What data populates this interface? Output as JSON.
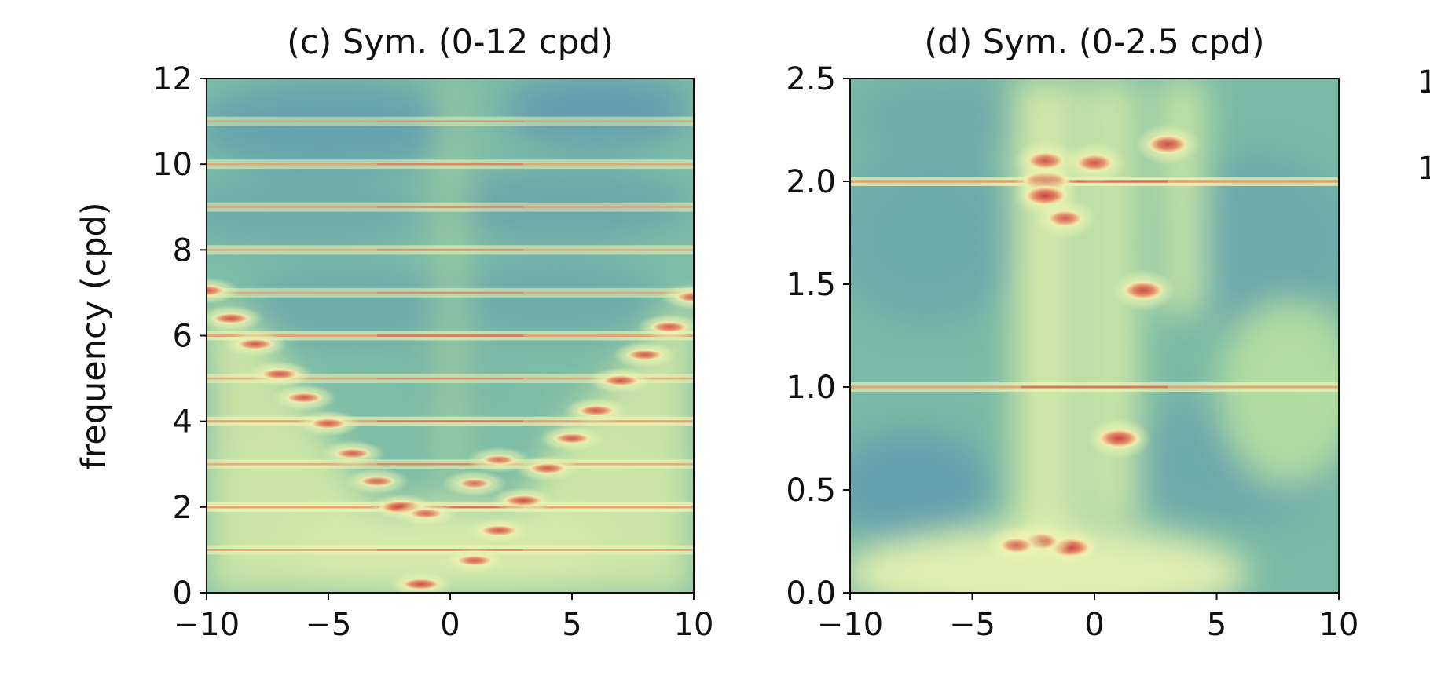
{
  "figure": {
    "ylabel": "frequency (cpd)",
    "cut_off_ticks": [
      "1",
      "1"
    ]
  },
  "colors": {
    "low": "#4f86b4",
    "mid_low": "#74b8a4",
    "mid": "#aed9a0",
    "mid_high": "#f4f6b6",
    "high": "#e2a272",
    "peak": "#c4343a"
  },
  "chart_data": [
    {
      "type": "heatmap",
      "title": "(c) Sym. (0-12 cpd)",
      "xlabel": "",
      "ylabel": "frequency (cpd)",
      "xlim": [
        -10,
        10
      ],
      "ylim": [
        0,
        12
      ],
      "xticks": [
        -10,
        -5,
        0,
        5,
        10
      ],
      "xtick_labels": [
        "−10",
        "−5",
        "0",
        "5",
        "10"
      ],
      "yticks": [
        0,
        2,
        4,
        6,
        8,
        10,
        12
      ],
      "ytick_labels": [
        "0",
        "2",
        "4",
        "6",
        "8",
        "10",
        "12"
      ],
      "harmonic_lines": [
        {
          "y": 1,
          "strength": 0.6
        },
        {
          "y": 2,
          "strength": 0.9
        },
        {
          "y": 3,
          "strength": 0.55
        },
        {
          "y": 4,
          "strength": 0.8
        },
        {
          "y": 5,
          "strength": 0.5
        },
        {
          "y": 6,
          "strength": 0.75
        },
        {
          "y": 7,
          "strength": 0.45
        },
        {
          "y": 8,
          "strength": 0.6
        },
        {
          "y": 9,
          "strength": 0.4
        },
        {
          "y": 10,
          "strength": 0.55
        },
        {
          "y": 11,
          "strength": 0.35
        }
      ],
      "peaks": [
        {
          "x": -2,
          "y": 2.0,
          "v": 1.0
        },
        {
          "x": -1.2,
          "y": 0.2,
          "v": 0.7
        },
        {
          "x": 1,
          "y": 0.75,
          "v": 0.55
        },
        {
          "x": 2,
          "y": 1.45,
          "v": 0.6
        },
        {
          "x": 3,
          "y": 2.15,
          "v": 0.7
        },
        {
          "x": 4,
          "y": 2.9,
          "v": 0.6
        },
        {
          "x": 5,
          "y": 3.6,
          "v": 0.55
        },
        {
          "x": 6,
          "y": 4.25,
          "v": 0.6
        },
        {
          "x": 7,
          "y": 4.95,
          "v": 0.6
        },
        {
          "x": 8,
          "y": 5.55,
          "v": 0.55
        },
        {
          "x": 9,
          "y": 6.2,
          "v": 0.6
        },
        {
          "x": 10,
          "y": 6.9,
          "v": 0.55
        },
        {
          "x": -1,
          "y": 1.85,
          "v": 0.45
        },
        {
          "x": -3,
          "y": 2.6,
          "v": 0.45
        },
        {
          "x": -4,
          "y": 3.25,
          "v": 0.5
        },
        {
          "x": -5,
          "y": 3.95,
          "v": 0.55
        },
        {
          "x": -6,
          "y": 4.55,
          "v": 0.55
        },
        {
          "x": -7,
          "y": 5.1,
          "v": 0.6
        },
        {
          "x": -8,
          "y": 5.8,
          "v": 0.6
        },
        {
          "x": -9,
          "y": 6.4,
          "v": 0.6
        },
        {
          "x": -10,
          "y": 7.05,
          "v": 0.6
        },
        {
          "x": 1,
          "y": 2.55,
          "v": 0.35
        },
        {
          "x": 2,
          "y": 3.1,
          "v": 0.35
        }
      ]
    },
    {
      "type": "heatmap",
      "title": "(d) Sym. (0-2.5 cpd)",
      "xlabel": "",
      "ylabel": "",
      "xlim": [
        -10,
        10
      ],
      "ylim": [
        0,
        2.5
      ],
      "xticks": [
        -10,
        -5,
        0,
        5,
        10
      ],
      "xtick_labels": [
        "−10",
        "−5",
        "0",
        "5",
        "10"
      ],
      "yticks": [
        0.0,
        0.5,
        1.0,
        1.5,
        2.0,
        2.5
      ],
      "ytick_labels": [
        "0.0",
        "0.5",
        "1.0",
        "1.5",
        "2.0",
        "2.5"
      ],
      "harmonic_lines": [
        {
          "y": 1.0,
          "strength": 0.8
        },
        {
          "y": 2.0,
          "strength": 1.0
        }
      ],
      "peaks": [
        {
          "x": -2,
          "y": 2.0,
          "v": 1.0
        },
        {
          "x": -2,
          "y": 1.93,
          "v": 0.85
        },
        {
          "x": -2,
          "y": 2.1,
          "v": 0.6
        },
        {
          "x": -1.2,
          "y": 1.82,
          "v": 0.5
        },
        {
          "x": 0,
          "y": 2.09,
          "v": 0.6
        },
        {
          "x": 3,
          "y": 2.18,
          "v": 0.75
        },
        {
          "x": 2,
          "y": 1.47,
          "v": 0.75
        },
        {
          "x": 1,
          "y": 0.75,
          "v": 0.8
        },
        {
          "x": -1,
          "y": 0.22,
          "v": 0.85
        },
        {
          "x": -2.2,
          "y": 0.25,
          "v": 0.55
        },
        {
          "x": -3.2,
          "y": 0.23,
          "v": 0.4
        }
      ]
    }
  ]
}
